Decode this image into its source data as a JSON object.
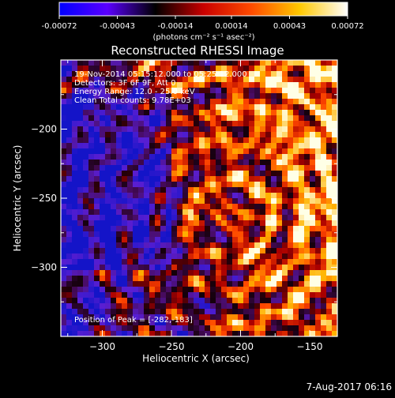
{
  "colorbar": {
    "ticks": [
      "-0.00072",
      "-0.00043",
      "-0.00014",
      "0.00014",
      "0.00043",
      "0.00072"
    ],
    "unit_text": "(photons cm⁻² s⁻¹ asec⁻²)",
    "range": [
      -0.00072,
      0.00072
    ],
    "stops": [
      "#0000ff",
      "#5a00ff",
      "#000000",
      "#c80000",
      "#ff4b00",
      "#ffc800",
      "#ffffff"
    ]
  },
  "chart_data": {
    "type": "heatmap",
    "title": "Reconstructed RHESSI Image",
    "xlabel": "Heliocentric X (arcsec)",
    "ylabel": "Heliocentric Y (arcsec)",
    "xlim": [
      -330,
      -130
    ],
    "ylim": [
      -350,
      -150
    ],
    "xticks": [
      -300,
      -250,
      -200,
      -150
    ],
    "yticks": [
      -200,
      -250,
      -300
    ],
    "annotations": [
      "19-Nov-2014 05:15:12.000 to 05:25:12.000",
      "Detectors: 3F 6F 9F, Att 0",
      "Energy Range: 12.0 - 25.0 keV",
      "Clean    Total counts: 9.78E+03"
    ],
    "peak_label": "Position of Peak = [-282,-183]",
    "peak_position": [
      -282,
      -183
    ]
  },
  "footer_date": "7-Aug-2017 06:16"
}
